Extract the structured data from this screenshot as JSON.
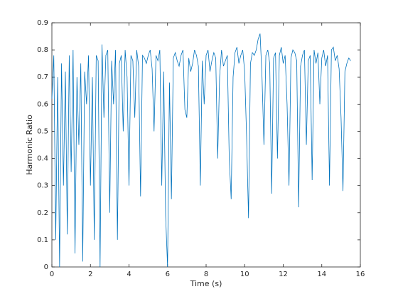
{
  "chart_data": {
    "type": "line",
    "x_label": "Time (s)",
    "y_label": "Harmonic Ratio",
    "x": [
      0,
      0.1,
      0.2,
      0.3,
      0.4,
      0.5,
      0.6,
      0.7,
      0.8,
      0.9,
      1,
      1.1,
      1.2,
      1.3,
      1.4,
      1.5,
      1.6,
      1.7,
      1.8,
      1.9,
      2,
      2.1,
      2.2,
      2.3,
      2.4,
      2.5,
      2.6,
      2.7,
      2.8,
      2.9,
      3,
      3.1,
      3.2,
      3.3,
      3.4,
      3.5,
      3.6,
      3.7,
      3.8,
      3.9,
      4,
      4.1,
      4.2,
      4.3,
      4.4,
      4.5,
      4.6,
      4.7,
      4.8,
      4.9,
      5,
      5.1,
      5.2,
      5.3,
      5.4,
      5.5,
      5.6,
      5.7,
      5.8,
      5.9,
      6,
      6.1,
      6.2,
      6.3,
      6.4,
      6.5,
      6.6,
      6.7,
      6.8,
      6.9,
      7,
      7.1,
      7.2,
      7.3,
      7.4,
      7.5,
      7.6,
      7.7,
      7.8,
      7.9,
      8,
      8.1,
      8.2,
      8.3,
      8.4,
      8.5,
      8.6,
      8.7,
      8.8,
      8.9,
      9,
      9.1,
      9.2,
      9.3,
      9.4,
      9.5,
      9.6,
      9.7,
      9.8,
      9.9,
      10,
      10.1,
      10.2,
      10.3,
      10.4,
      10.5,
      10.6,
      10.7,
      10.8,
      10.9,
      11,
      11.1,
      11.2,
      11.3,
      11.4,
      11.5,
      11.6,
      11.7,
      11.8,
      11.9,
      12,
      12.1,
      12.2,
      12.3,
      12.4,
      12.5,
      12.6,
      12.7,
      12.8,
      12.9,
      13,
      13.1,
      13.2,
      13.3,
      13.4,
      13.5,
      13.6,
      13.7,
      13.8,
      13.9,
      14,
      14.1,
      14.2,
      14.3,
      14.4,
      14.5,
      14.6,
      14.7,
      14.8,
      14.9,
      15,
      15.1,
      15.2,
      15.3,
      15.4,
      15.5
    ],
    "series": [
      {
        "color": "#0072bd",
        "values": [
          0.62,
          0.78,
          0.1,
          0.7,
          0.0,
          0.75,
          0.3,
          0.72,
          0.12,
          0.78,
          0.35,
          0.8,
          0.05,
          0.7,
          0.45,
          0.75,
          0.02,
          0.72,
          0.6,
          0.78,
          0.3,
          0.7,
          0.1,
          0.78,
          0.76,
          0.0,
          0.82,
          0.55,
          0.78,
          0.8,
          0.2,
          0.76,
          0.6,
          0.8,
          0.1,
          0.75,
          0.78,
          0.5,
          0.8,
          0.7,
          0.3,
          0.78,
          0.76,
          0.55,
          0.8,
          0.74,
          0.26,
          0.78,
          0.77,
          0.75,
          0.78,
          0.8,
          0.73,
          0.5,
          0.78,
          0.76,
          0.8,
          0.3,
          0.72,
          0.19,
          0.0,
          0.68,
          0.25,
          0.77,
          0.79,
          0.76,
          0.74,
          0.78,
          0.8,
          0.58,
          0.55,
          0.77,
          0.72,
          0.75,
          0.8,
          0.78,
          0.74,
          0.3,
          0.76,
          0.6,
          0.78,
          0.8,
          0.72,
          0.76,
          0.79,
          0.77,
          0.4,
          0.7,
          0.8,
          0.74,
          0.76,
          0.78,
          0.4,
          0.25,
          0.7,
          0.79,
          0.81,
          0.75,
          0.78,
          0.8,
          0.72,
          0.48,
          0.18,
          0.75,
          0.79,
          0.78,
          0.8,
          0.84,
          0.86,
          0.7,
          0.45,
          0.78,
          0.8,
          0.75,
          0.27,
          0.77,
          0.79,
          0.4,
          0.78,
          0.81,
          0.75,
          0.78,
          0.6,
          0.3,
          0.77,
          0.8,
          0.79,
          0.76,
          0.22,
          0.74,
          0.78,
          0.8,
          0.45,
          0.76,
          0.78,
          0.32,
          0.8,
          0.75,
          0.79,
          0.6,
          0.77,
          0.8,
          0.74,
          0.78,
          0.3,
          0.8,
          0.81,
          0.76,
          0.78,
          0.73,
          0.55,
          0.28,
          0.72,
          0.75,
          0.77,
          0.76
        ]
      }
    ],
    "xlim": [
      0,
      16
    ],
    "xticks": [
      0,
      2,
      4,
      6,
      8,
      10,
      12,
      14,
      16
    ],
    "ylim": [
      0,
      0.9
    ],
    "yticks": [
      0,
      0.1,
      0.2,
      0.3,
      0.4,
      0.5,
      0.6,
      0.7,
      0.8,
      0.9
    ]
  }
}
